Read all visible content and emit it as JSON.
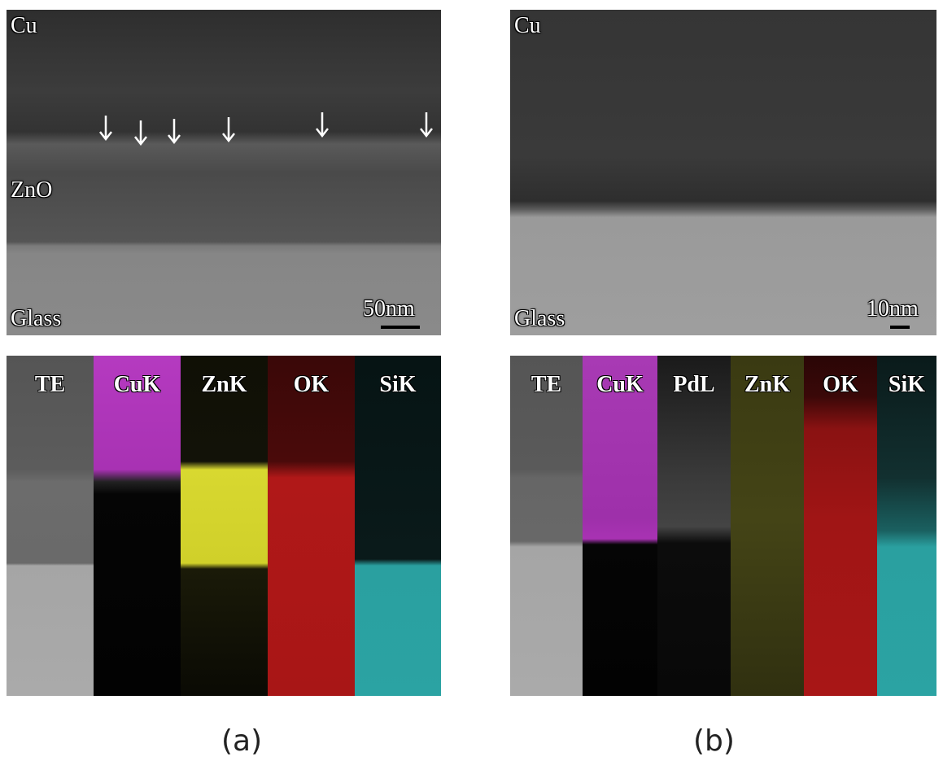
{
  "panels": [
    {
      "caption": "(a)",
      "image_labels": [
        "Cu",
        "ZnO",
        "Glass"
      ],
      "scale_bar": "50nm",
      "maps": [
        "TE",
        "CuK",
        "ZnK",
        "OK",
        "SiK"
      ]
    },
    {
      "caption": "(b)",
      "image_labels": [
        "Cu",
        "Glass"
      ],
      "scale_bar": "10nm",
      "maps": [
        "TE",
        "CuK",
        "PdL",
        "ZnK",
        "OK",
        "SiK"
      ]
    }
  ]
}
